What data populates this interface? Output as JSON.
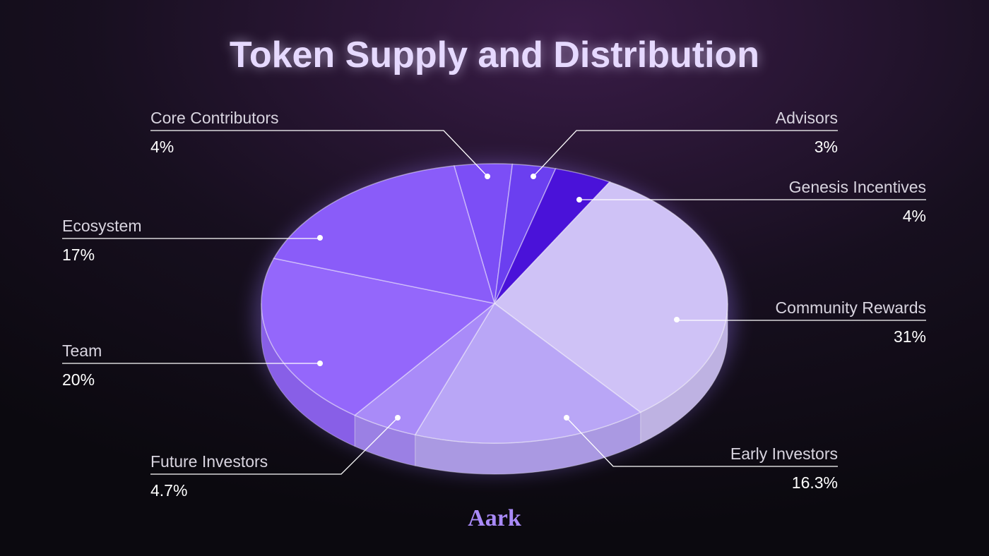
{
  "chart_data": {
    "type": "pie",
    "title": "Token Supply and Distribution",
    "categories": [
      "Core Contributors",
      "Advisors",
      "Genesis Incentives",
      "Community Rewards",
      "Early Investors",
      "Future Investors",
      "Team",
      "Ecosystem"
    ],
    "values": [
      4,
      3,
      4,
      31,
      16.3,
      4.7,
      20,
      17
    ],
    "value_labels": [
      "4%",
      "3%",
      "4%",
      "31%",
      "16.3%",
      "4.7%",
      "20%",
      "17%"
    ],
    "colors": [
      "#7c4ef6",
      "#6b3ff0",
      "#4a12d9",
      "#cfc2f6",
      "#b9a6f6",
      "#a98bf8",
      "#9467fb",
      "#8a5cf9"
    ]
  },
  "brand": "Aark"
}
